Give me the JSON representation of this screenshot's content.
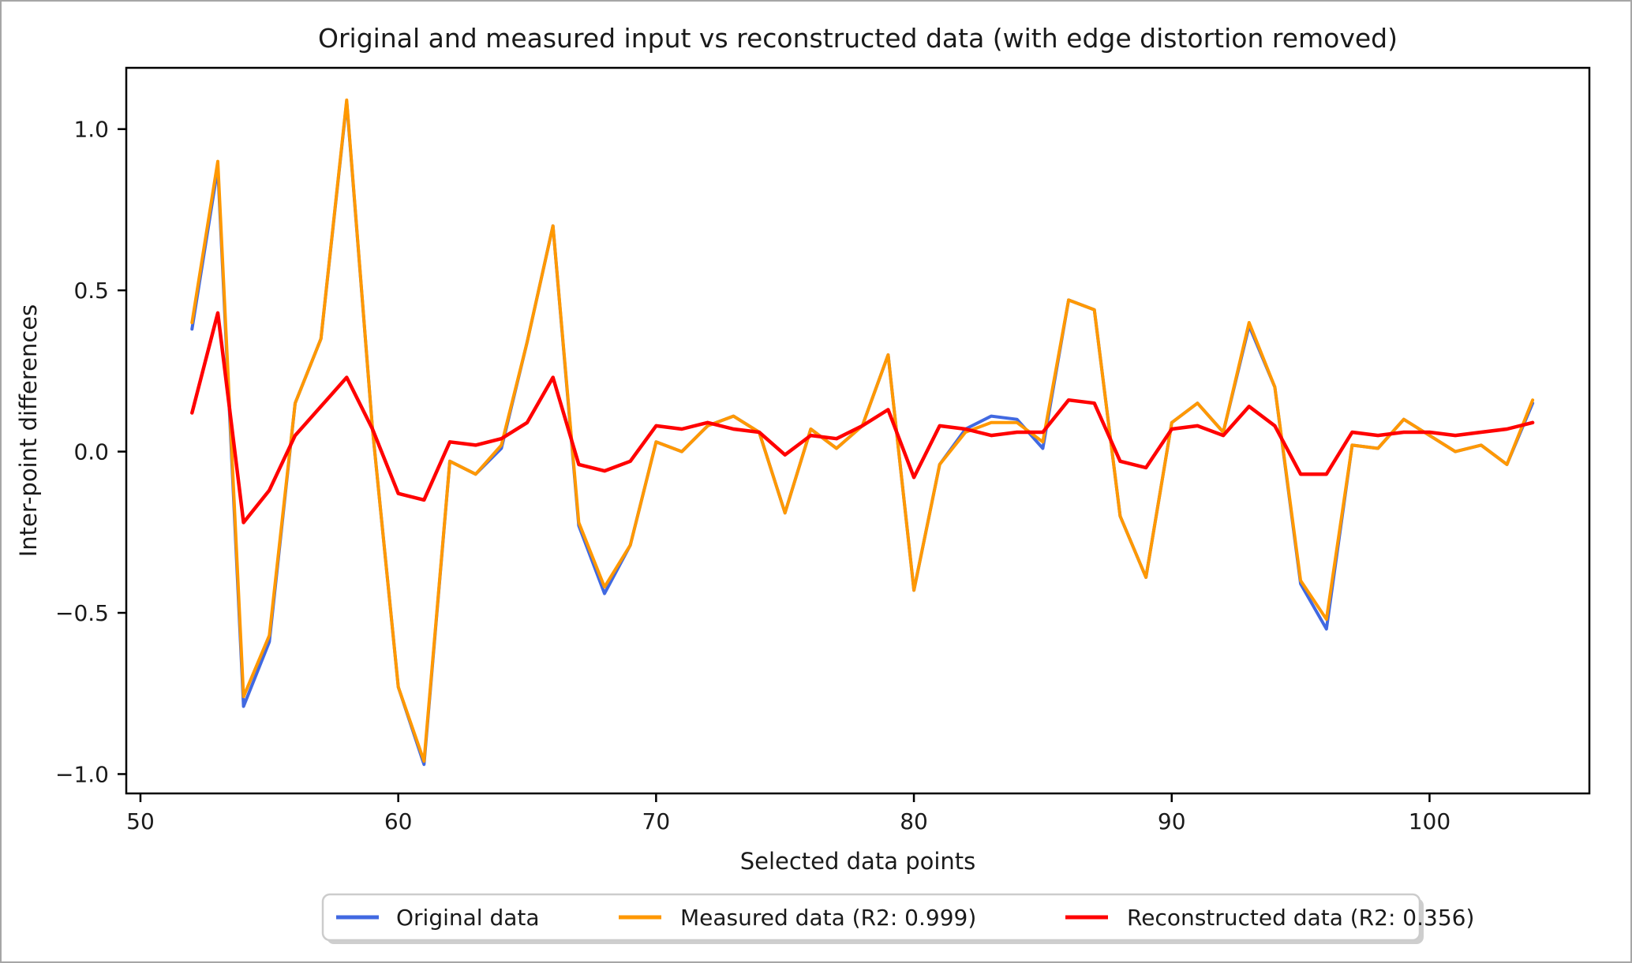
{
  "figure": {
    "background": "#ffffff",
    "border_color": "#a6a6a6",
    "spine_color": "#000000",
    "tick_color": "#000000"
  },
  "chart_data": {
    "type": "line",
    "title": "Original and measured input vs reconstructed data (with edge distortion removed)",
    "xlabel": "Selected data points",
    "ylabel": "Inter-point differences",
    "grid": false,
    "legend_position": "bottom-center",
    "xlim": [
      49.45,
      106.2
    ],
    "ylim": [
      -1.06,
      1.19
    ],
    "x_ticks": [
      50,
      60,
      70,
      80,
      90,
      100
    ],
    "y_ticks": [
      -1.0,
      -0.5,
      0.0,
      0.5,
      1.0
    ],
    "x": [
      52,
      53,
      54,
      55,
      56,
      57,
      58,
      59,
      60,
      61,
      62,
      63,
      64,
      65,
      66,
      67,
      68,
      69,
      70,
      71,
      72,
      73,
      74,
      75,
      76,
      77,
      78,
      79,
      80,
      81,
      82,
      83,
      84,
      85,
      86,
      87,
      88,
      89,
      90,
      91,
      92,
      93,
      94,
      95,
      96,
      97,
      98,
      99,
      100,
      101,
      102,
      103,
      104
    ],
    "series": [
      {
        "name": "Original data",
        "legend_label": "Original data",
        "color": "#4169e1",
        "line_width": 4,
        "values": [
          0.38,
          0.88,
          -0.79,
          -0.59,
          0.15,
          0.35,
          1.085,
          0.07,
          -0.73,
          -0.97,
          -0.03,
          -0.07,
          0.01,
          0.34,
          0.7,
          -0.23,
          -0.44,
          -0.29,
          0.03,
          0.0,
          0.08,
          0.11,
          0.06,
          -0.19,
          0.07,
          0.01,
          0.08,
          0.3,
          -0.43,
          -0.04,
          0.07,
          0.11,
          0.1,
          0.01,
          0.47,
          0.44,
          -0.2,
          -0.39,
          0.09,
          0.15,
          0.06,
          0.39,
          0.2,
          -0.41,
          -0.55,
          0.02,
          0.01,
          0.1,
          0.05,
          0.0,
          0.02,
          -0.04,
          0.15
        ]
      },
      {
        "name": "Measured data (R2: 0.999)",
        "legend_label": "Measured data (R2: 0.999)",
        "color": "#ff9800",
        "line_width": 4,
        "values": [
          0.4,
          0.9,
          -0.76,
          -0.57,
          0.15,
          0.35,
          1.09,
          0.07,
          -0.73,
          -0.96,
          -0.03,
          -0.07,
          0.02,
          0.34,
          0.7,
          -0.22,
          -0.42,
          -0.29,
          0.03,
          0.0,
          0.08,
          0.11,
          0.06,
          -0.19,
          0.07,
          0.01,
          0.08,
          0.3,
          -0.43,
          -0.04,
          0.06,
          0.09,
          0.09,
          0.03,
          0.47,
          0.44,
          -0.2,
          -0.39,
          0.09,
          0.15,
          0.06,
          0.4,
          0.2,
          -0.4,
          -0.52,
          0.02,
          0.01,
          0.1,
          0.05,
          0.0,
          0.02,
          -0.04,
          0.16
        ]
      },
      {
        "name": "Reconstructed data (R2: 0.356)",
        "legend_label": "Reconstructed data (R2: 0.356)",
        "color": "#ff0000",
        "line_width": 4.5,
        "values": [
          0.12,
          0.43,
          -0.22,
          -0.12,
          0.05,
          0.14,
          0.23,
          0.07,
          -0.13,
          -0.15,
          0.03,
          0.02,
          0.04,
          0.09,
          0.23,
          -0.04,
          -0.06,
          -0.03,
          0.08,
          0.07,
          0.09,
          0.07,
          0.06,
          -0.01,
          0.05,
          0.04,
          0.08,
          0.13,
          -0.08,
          0.08,
          0.07,
          0.05,
          0.06,
          0.06,
          0.16,
          0.15,
          -0.03,
          -0.05,
          0.07,
          0.08,
          0.05,
          0.14,
          0.08,
          -0.07,
          -0.07,
          0.06,
          0.05,
          0.06,
          0.06,
          0.05,
          0.06,
          0.07,
          0.09
        ]
      }
    ],
    "legend": {
      "border_color": "#cccccc",
      "shadow_color": "#bdbdbd"
    }
  }
}
